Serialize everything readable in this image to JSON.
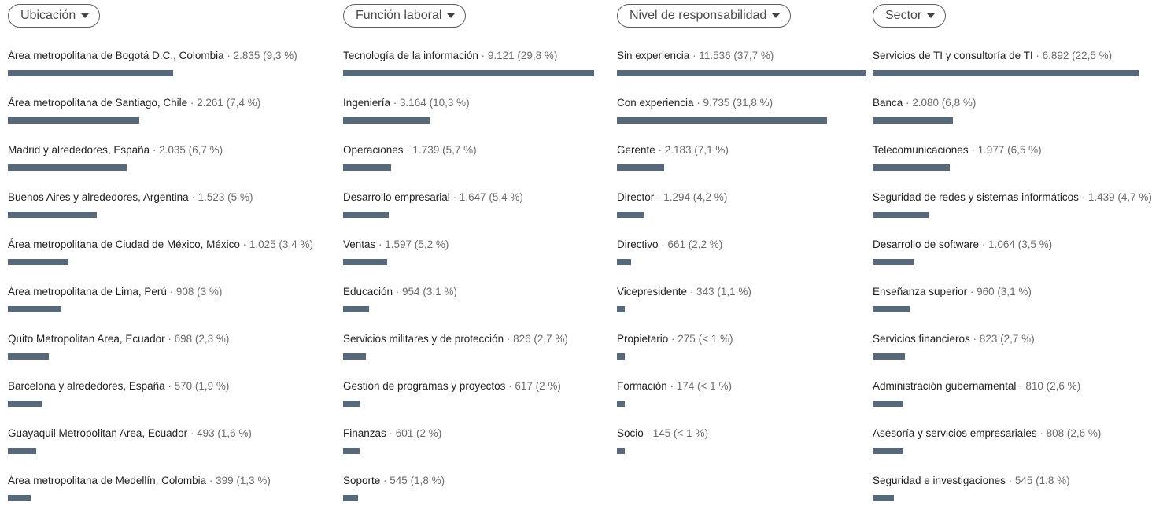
{
  "colors": {
    "bar": "#56687a",
    "filter_border": "#5f5f5f"
  },
  "columns": [
    {
      "id": "ubicacion",
      "filter_label": "Ubicación",
      "items": [
        {
          "label": "Área metropolitana de Bogotá D.C., Colombia",
          "meta": " · 2.835 (9,3 %)",
          "share": 9.3
        },
        {
          "label": "Área metropolitana de Santiago, Chile",
          "meta": " · 2.261 (7,4 %)",
          "share": 7.4
        },
        {
          "label": "Madrid y alrededores, España",
          "meta": " · 2.035 (6,7 %)",
          "share": 6.7
        },
        {
          "label": "Buenos Aires y alrededores, Argentina",
          "meta": " · 1.523 (5 %)",
          "share": 5.0
        },
        {
          "label": "Área metropolitana de Ciudad de México, México",
          "meta": " · 1.025 (3,4 %)",
          "share": 3.4
        },
        {
          "label": "Área metropolitana de Lima, Perú",
          "meta": " · 908 (3 %)",
          "share": 3.0
        },
        {
          "label": "Quito Metropolitan Area, Ecuador",
          "meta": " · 698 (2,3 %)",
          "share": 2.3
        },
        {
          "label": "Barcelona y alrededores, España",
          "meta": " · 570 (1,9 %)",
          "share": 1.9
        },
        {
          "label": "Guayaquil Metropolitan Area, Ecuador",
          "meta": " · 493 (1,6 %)",
          "share": 1.6
        },
        {
          "label": "Área metropolitana de Medellín, Colombia",
          "meta": " · 399 (1,3 %)",
          "share": 1.3
        }
      ]
    },
    {
      "id": "funcion",
      "filter_label": "Función laboral",
      "items": [
        {
          "label": "Tecnología de la información",
          "meta": " · 9.121 (29,8 %)",
          "share": 29.8
        },
        {
          "label": "Ingeniería",
          "meta": " · 3.164 (10,3 %)",
          "share": 10.3
        },
        {
          "label": "Operaciones",
          "meta": " · 1.739 (5,7 %)",
          "share": 5.7
        },
        {
          "label": "Desarrollo empresarial",
          "meta": " · 1.647 (5,4 %)",
          "share": 5.4
        },
        {
          "label": "Ventas",
          "meta": " · 1.597 (5,2 %)",
          "share": 5.2
        },
        {
          "label": "Educación",
          "meta": " · 954 (3,1 %)",
          "share": 3.1
        },
        {
          "label": "Servicios militares y de protección",
          "meta": " · 826 (2,7 %)",
          "share": 2.7
        },
        {
          "label": "Gestión de programas y proyectos",
          "meta": " · 617 (2 %)",
          "share": 2.0
        },
        {
          "label": "Finanzas",
          "meta": " · 601 (2 %)",
          "share": 2.0
        },
        {
          "label": "Soporte",
          "meta": " · 545 (1,8 %)",
          "share": 1.8
        }
      ]
    },
    {
      "id": "nivel",
      "filter_label": "Nivel de responsabilidad",
      "items": [
        {
          "label": "Sin experiencia",
          "meta": " · 11.536 (37,7 %)",
          "share": 37.7
        },
        {
          "label": "Con experiencia",
          "meta": " · 9.735 (31,8 %)",
          "share": 31.8
        },
        {
          "label": "Gerente",
          "meta": " · 2.183 (7,1 %)",
          "share": 7.1
        },
        {
          "label": "Director",
          "meta": " · 1.294 (4,2 %)",
          "share": 4.2
        },
        {
          "label": "Directivo",
          "meta": " · 661 (2,2 %)",
          "share": 2.2
        },
        {
          "label": "Vicepresidente",
          "meta": " · 343 (1,1 %)",
          "share": 1.1
        },
        {
          "label": "Propietario",
          "meta": " · 275 (< 1 %)",
          "share": 0.9
        },
        {
          "label": "Formación",
          "meta": " · 174 (< 1 %)",
          "share": 0.6
        },
        {
          "label": "Socio",
          "meta": " · 145 (< 1 %)",
          "share": 0.5
        }
      ]
    },
    {
      "id": "sector",
      "filter_label": "Sector",
      "items": [
        {
          "label": "Servicios de TI y consultoría de TI",
          "meta": " · 6.892 (22,5 %)",
          "share": 22.5
        },
        {
          "label": "Banca",
          "meta": " · 2.080 (6,8 %)",
          "share": 6.8
        },
        {
          "label": "Telecomunicaciones",
          "meta": " · 1.977 (6,5 %)",
          "share": 6.5
        },
        {
          "label": "Seguridad de redes y sistemas informáticos",
          "meta": " · 1.439 (4,7 %)",
          "share": 4.7
        },
        {
          "label": "Desarrollo de software",
          "meta": " · 1.064 (3,5 %)",
          "share": 3.5
        },
        {
          "label": "Enseñanza superior",
          "meta": " · 960 (3,1 %)",
          "share": 3.1
        },
        {
          "label": "Servicios financieros",
          "meta": " · 823 (2,7 %)",
          "share": 2.7
        },
        {
          "label": "Administración gubernamental",
          "meta": " · 810 (2,6 %)",
          "share": 2.6
        },
        {
          "label": "Asesoría y servicios empresariales",
          "meta": " · 808 (2,6 %)",
          "share": 2.6
        },
        {
          "label": "Seguridad e investigaciones",
          "meta": " · 545 (1,8 %)",
          "share": 1.8
        }
      ]
    }
  ]
}
